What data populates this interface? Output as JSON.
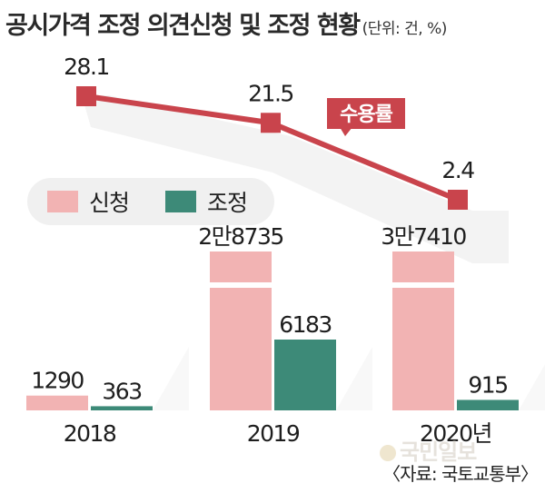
{
  "title": "공시가격 조정 의견신청 및 조정 현황",
  "unit": "(단위: 건, %)",
  "source": "〈자료: 국토교통부〉",
  "watermark": "국민일보",
  "colors": {
    "line": "#c9444c",
    "request": "#f2b3b3",
    "adjust": "#3d8a78",
    "legend_bg": "#f0f0f0",
    "shadow": "#ebebeb"
  },
  "chart_data": {
    "type": "bar",
    "title": "공시가격 조정 의견신청 및 조정 현황",
    "categories": [
      "2018",
      "2019",
      "2020년"
    ],
    "series": [
      {
        "name": "신청",
        "values": [
          1290,
          28735,
          37410
        ],
        "labels": [
          "1290",
          "2만8735",
          "3만7410"
        ]
      },
      {
        "name": "조정",
        "values": [
          363,
          6183,
          915
        ],
        "labels": [
          "363",
          "6183",
          "915"
        ]
      }
    ],
    "line_series": {
      "name": "수용률",
      "values": [
        28.1,
        21.5,
        2.4
      ],
      "labels": [
        "28.1",
        "21.5",
        "2.4"
      ]
    },
    "legend": [
      "신청",
      "조정"
    ],
    "legend_position": "left, middle",
    "axis_break": "신청 bars in 2019 and 2020년 are broken (axis break)",
    "grid": false
  }
}
